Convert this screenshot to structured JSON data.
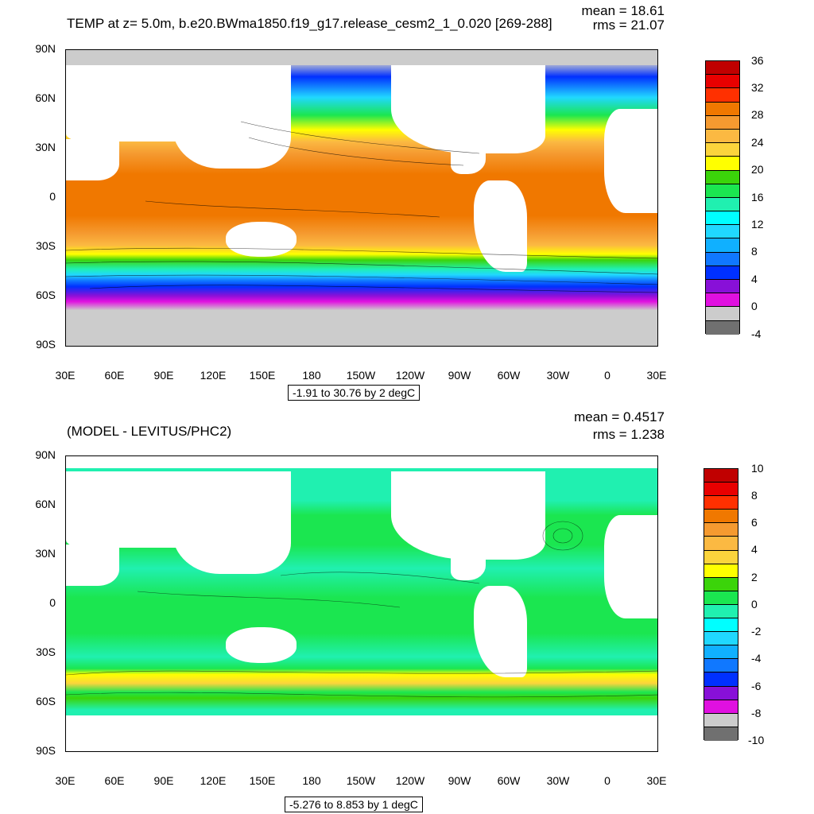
{
  "panels": [
    {
      "title": "TEMP at z=   5.0m, b.e20.BWma1850.f19_g17.release_cesm2_1_0.020 [269-288]",
      "mean_label": "mean = 18.61",
      "rms_label": "rms = 21.07",
      "info_box": "-1.91 to 30.76 by 2 degC",
      "y_ticks": [
        "90N",
        "60N",
        "30N",
        "0",
        "30S",
        "60S",
        "90S"
      ],
      "x_ticks": [
        "30E",
        "60E",
        "90E",
        "120E",
        "150E",
        "180",
        "150W",
        "120W",
        "90W",
        "60W",
        "30W",
        "0",
        "30E"
      ],
      "colorbar": {
        "labels": [
          "36",
          "32",
          "28",
          "24",
          "20",
          "16",
          "12",
          "8",
          "4",
          "0",
          "-4"
        ],
        "colors": [
          "#c00000",
          "#e80000",
          "#ff3000",
          "#f07800",
          "#f59a30",
          "#fbb942",
          "#fbd43c",
          "#ffff00",
          "#3bd40a",
          "#1be650",
          "#20f0b0",
          "#00ffff",
          "#20d8ff",
          "#10b0ff",
          "#1078ff",
          "#0030ff",
          "#8810d8",
          "#e010e0",
          "#cccccc",
          "#707070"
        ]
      }
    },
    {
      "title": "(MODEL - LEVITUS/PHC2)",
      "mean_label": "mean = 0.4517",
      "rms_label": "rms = 1.238",
      "info_box": "-5.276 to 8.853 by 1 degC",
      "y_ticks": [
        "90N",
        "60N",
        "30N",
        "0",
        "30S",
        "60S",
        "90S"
      ],
      "x_ticks": [
        "30E",
        "60E",
        "90E",
        "120E",
        "150E",
        "180",
        "150W",
        "120W",
        "90W",
        "60W",
        "30W",
        "0",
        "30E"
      ],
      "colorbar": {
        "labels": [
          "10",
          "8",
          "6",
          "4",
          "2",
          "0",
          "-2",
          "-4",
          "-6",
          "-8",
          "-10"
        ],
        "colors": [
          "#c00000",
          "#e80000",
          "#ff3000",
          "#f07800",
          "#f59a30",
          "#fbb942",
          "#fbd43c",
          "#ffff00",
          "#3bd40a",
          "#1be650",
          "#20f0b0",
          "#00ffff",
          "#20d8ff",
          "#10b0ff",
          "#1078ff",
          "#0030ff",
          "#8810d8",
          "#e010e0",
          "#cccccc",
          "#707070"
        ]
      }
    }
  ]
}
